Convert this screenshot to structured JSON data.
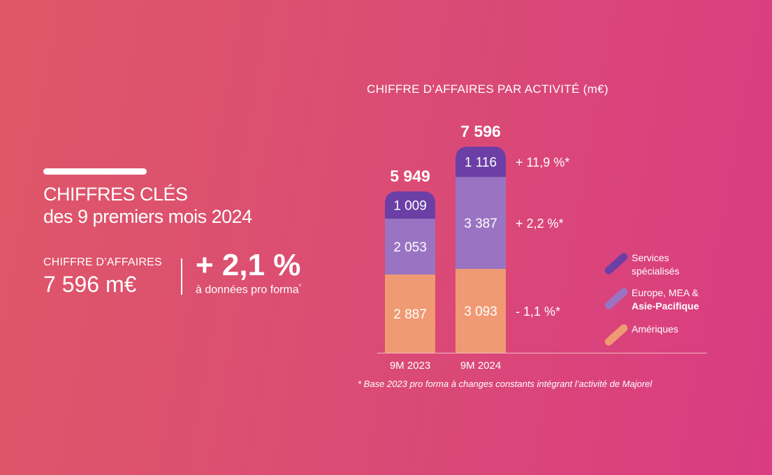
{
  "headline": {
    "title_line1": "CHIFFRES CLÉS",
    "title_line2": "des 9 premiers mois 2024"
  },
  "kpi": {
    "label": "CHIFFRE D’AFFAIRES",
    "value": "7 596 m€",
    "growth": "+ 2,1 %",
    "growth_note": "à données pro forma",
    "growth_note_marker": "*"
  },
  "colors": {
    "services": "#6b3fa6",
    "europe": "#9a74c3",
    "ameriques": "#f09a73",
    "background_start": "#df5767",
    "background_end": "#d93c82"
  },
  "chart_data": {
    "type": "bar",
    "stacked": true,
    "title": "CHIFFRE D’AFFAIRES PAR ACTIVITÉ (m€)",
    "categories": [
      "9M 2023",
      "9M 2024"
    ],
    "totals": [
      "5 949",
      "7 596"
    ],
    "series": [
      {
        "name": "Amériques",
        "values": [
          2887,
          3093
        ],
        "labels": [
          "2 887",
          "3 093"
        ],
        "color": "#f09a73",
        "change": "- 1,1 %*"
      },
      {
        "name": "Europe, MEA & Asie-Pacifique",
        "values": [
          2053,
          3387
        ],
        "labels": [
          "2 053",
          "3 387"
        ],
        "color": "#9a74c3",
        "change": "+ 2,2 %*"
      },
      {
        "name": "Services spécialisés",
        "values": [
          1009,
          1116
        ],
        "labels": [
          "1 009",
          "1 116"
        ],
        "color": "#6b3fa6",
        "change": "+ 11,9 %*"
      }
    ],
    "legend": {
      "placement": "right",
      "items": [
        {
          "line1": "Services",
          "line2": "spécialisés",
          "color": "#6b3fa6"
        },
        {
          "line1": "Europe, MEA &",
          "line2": "Asie-Pacifique",
          "color": "#9a74c3"
        },
        {
          "line1": "Amériques",
          "line2": "",
          "color": "#f09a73"
        }
      ]
    },
    "footnote": "* Base 2023 pro forma à changes constants intégrant l’activité de Majorel",
    "grid": false
  }
}
